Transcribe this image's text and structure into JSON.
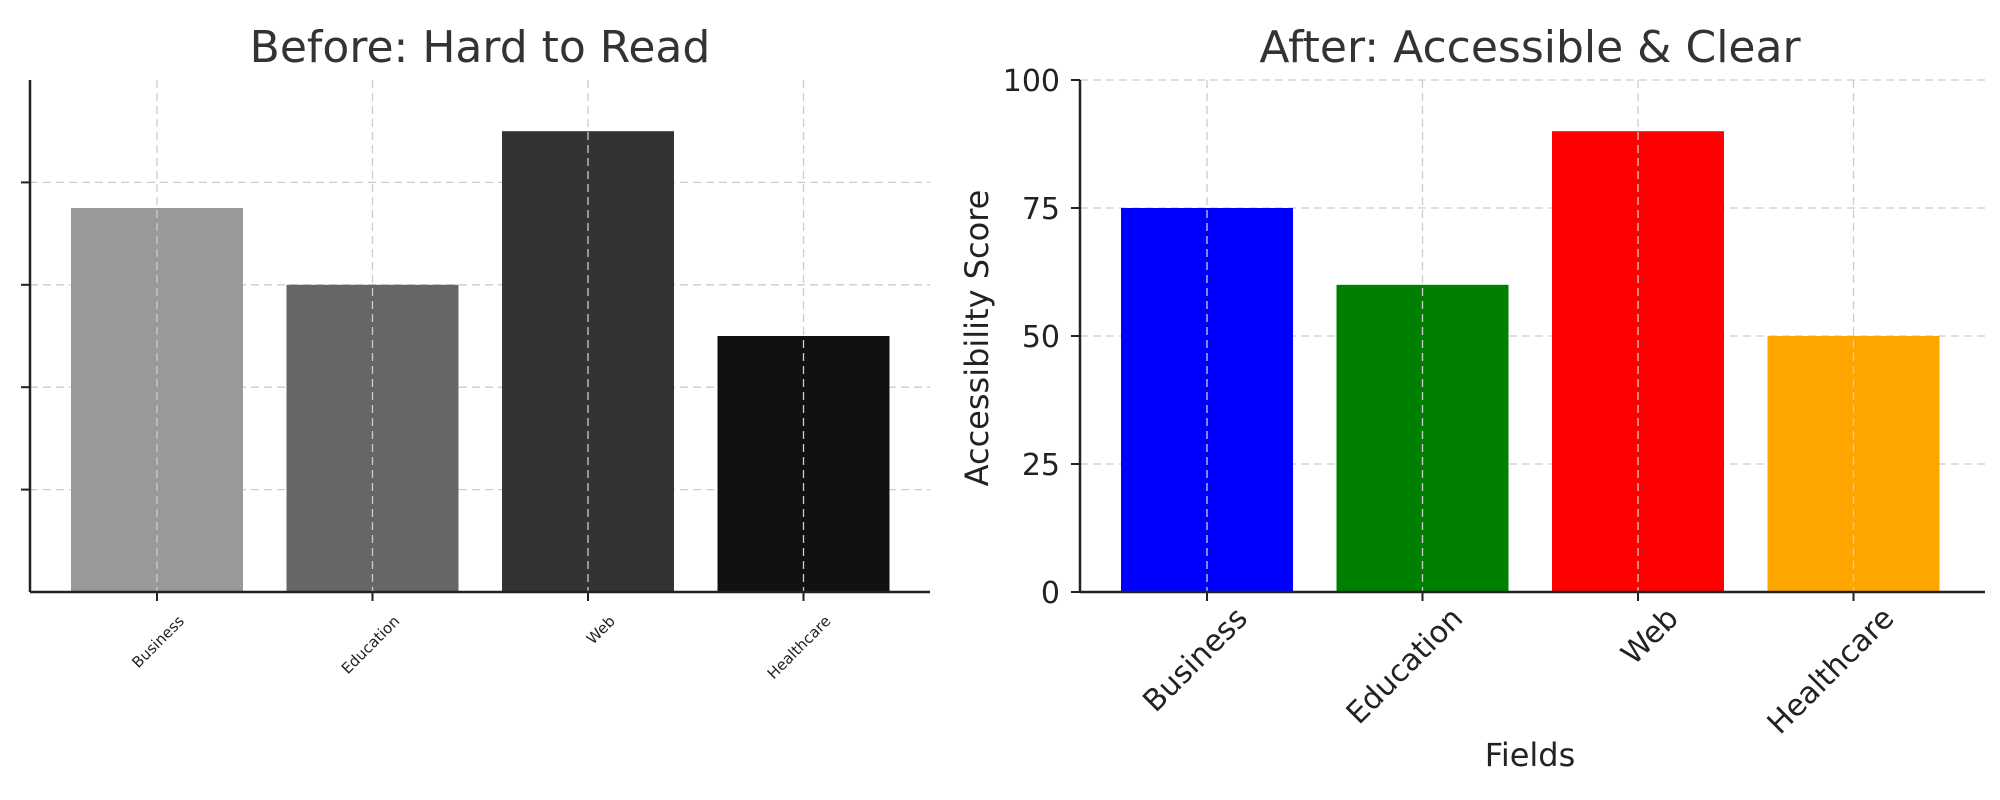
{
  "chart_data": [
    {
      "type": "bar",
      "title": "Before: Hard to Read",
      "categories": [
        "Business",
        "Education",
        "Web",
        "Healthcare"
      ],
      "values": [
        75,
        60,
        90,
        50
      ],
      "colors": [
        "#999999",
        "#666666",
        "#333333",
        "#111111"
      ],
      "xlabel": "",
      "ylabel": "",
      "ylim": [
        0,
        100
      ],
      "yticks": [
        20,
        40,
        60,
        80
      ],
      "ytick_labels_visible": false,
      "grid": true
    },
    {
      "type": "bar",
      "title": "After: Accessible & Clear",
      "categories": [
        "Business",
        "Education",
        "Web",
        "Healthcare"
      ],
      "values": [
        75,
        60,
        90,
        50
      ],
      "colors": [
        "#0000ff",
        "#008000",
        "#ff0000",
        "#ffa500"
      ],
      "xlabel": "Fields",
      "ylabel": "Accessibility Score",
      "ylim": [
        0,
        100
      ],
      "yticks": [
        0,
        25,
        50,
        75,
        100
      ],
      "ytick_labels_visible": true,
      "grid": true
    }
  ]
}
